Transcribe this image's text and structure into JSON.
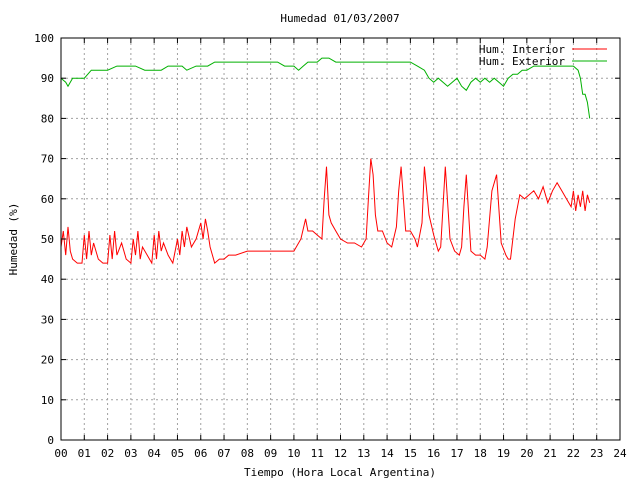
{
  "chart_data": {
    "type": "line",
    "title": "Humedad 01/03/2007",
    "xlabel": "Tiempo (Hora Local Argentina)",
    "ylabel": "Humedad (%)",
    "xlim": [
      0,
      24
    ],
    "ylim": [
      0,
      100
    ],
    "grid": true,
    "legend_position": "top-right",
    "x_ticks": [
      0,
      1,
      2,
      3,
      4,
      5,
      6,
      7,
      8,
      9,
      10,
      11,
      12,
      13,
      14,
      15,
      16,
      17,
      18,
      19,
      20,
      21,
      22,
      23,
      24
    ],
    "x_tick_labels": [
      "00",
      "01",
      "02",
      "03",
      "04",
      "05",
      "06",
      "07",
      "08",
      "09",
      "10",
      "11",
      "12",
      "13",
      "14",
      "15",
      "16",
      "17",
      "18",
      "19",
      "20",
      "21",
      "22",
      "23",
      "24"
    ],
    "y_ticks": [
      0,
      10,
      20,
      30,
      40,
      50,
      60,
      70,
      80,
      90,
      100
    ],
    "y_tick_labels": [
      "0",
      "10",
      "20",
      "30",
      "40",
      "50",
      "60",
      "70",
      "80",
      "90",
      "100"
    ],
    "series": [
      {
        "name": "Hum. Interior",
        "color": "#ff0000",
        "x": [
          0.0,
          0.1,
          0.2,
          0.3,
          0.4,
          0.5,
          0.7,
          0.9,
          1.0,
          1.1,
          1.2,
          1.3,
          1.4,
          1.6,
          1.8,
          2.0,
          2.1,
          2.2,
          2.3,
          2.4,
          2.6,
          2.8,
          3.0,
          3.1,
          3.2,
          3.3,
          3.4,
          3.5,
          3.7,
          3.9,
          4.0,
          4.1,
          4.2,
          4.3,
          4.4,
          4.6,
          4.8,
          5.0,
          5.1,
          5.2,
          5.3,
          5.4,
          5.6,
          5.8,
          6.0,
          6.1,
          6.2,
          6.3,
          6.4,
          6.6,
          6.8,
          7.0,
          7.2,
          7.5,
          8.0,
          8.5,
          9.0,
          9.5,
          10.0,
          10.3,
          10.5,
          10.6,
          10.8,
          11.0,
          11.2,
          11.3,
          11.4,
          11.5,
          11.6,
          11.8,
          12.0,
          12.3,
          12.6,
          12.9,
          13.1,
          13.2,
          13.3,
          13.4,
          13.5,
          13.6,
          13.8,
          14.0,
          14.2,
          14.4,
          14.5,
          14.6,
          14.8,
          15.0,
          15.2,
          15.3,
          15.5,
          15.6,
          15.8,
          16.0,
          16.2,
          16.3,
          16.4,
          16.5,
          16.7,
          16.9,
          17.1,
          17.2,
          17.3,
          17.4,
          17.6,
          17.8,
          18.0,
          18.2,
          18.3,
          18.5,
          18.7,
          18.9,
          19.1,
          19.2,
          19.3,
          19.5,
          19.7,
          19.9,
          20.1,
          20.3,
          20.5,
          20.7,
          20.9,
          21.1,
          21.3,
          21.5,
          21.7,
          21.9,
          22.0,
          22.1,
          22.2,
          22.3,
          22.4,
          22.5,
          22.6,
          22.7
        ],
        "values": [
          48,
          52,
          46,
          53,
          47,
          45,
          44,
          44,
          51,
          45,
          52,
          46,
          49,
          45,
          44,
          44,
          51,
          45,
          52,
          46,
          49,
          45,
          44,
          50,
          46,
          52,
          45,
          48,
          46,
          44,
          51,
          45,
          52,
          47,
          49,
          46,
          44,
          50,
          46,
          52,
          48,
          53,
          48,
          50,
          54,
          50,
          55,
          52,
          48,
          44,
          45,
          45,
          46,
          46,
          47,
          47,
          47,
          47,
          47,
          50,
          55,
          52,
          52,
          51,
          50,
          60,
          68,
          56,
          54,
          52,
          50,
          49,
          49,
          48,
          50,
          60,
          70,
          66,
          56,
          52,
          52,
          49,
          48,
          53,
          62,
          68,
          52,
          52,
          50,
          48,
          54,
          68,
          56,
          51,
          47,
          48,
          58,
          68,
          50,
          47,
          46,
          48,
          58,
          66,
          47,
          46,
          46,
          45,
          48,
          62,
          66,
          49,
          46,
          45,
          45,
          55,
          61,
          60,
          61,
          62,
          60,
          63,
          59,
          62,
          64,
          62,
          60,
          58,
          62,
          57,
          61,
          58,
          62,
          57,
          61,
          59
        ],
        "values_unit": "%"
      },
      {
        "name": "Hum. Exterior",
        "color": "#00b000",
        "x": [
          0.0,
          0.2,
          0.3,
          0.5,
          0.8,
          1.0,
          1.3,
          1.6,
          2.0,
          2.4,
          2.8,
          3.2,
          3.6,
          4.0,
          4.3,
          4.6,
          5.0,
          5.2,
          5.4,
          5.8,
          6.0,
          6.3,
          6.6,
          7.0,
          7.5,
          8.0,
          8.5,
          9.0,
          9.3,
          9.6,
          10.0,
          10.2,
          10.4,
          10.6,
          10.8,
          11.0,
          11.2,
          11.5,
          11.8,
          12.0,
          12.5,
          13.0,
          13.5,
          14.0,
          14.5,
          15.0,
          15.3,
          15.6,
          15.8,
          16.0,
          16.2,
          16.4,
          16.6,
          16.8,
          17.0,
          17.2,
          17.4,
          17.6,
          17.8,
          18.0,
          18.2,
          18.4,
          18.6,
          18.8,
          19.0,
          19.2,
          19.4,
          19.6,
          19.8,
          20.0,
          20.3,
          20.6,
          21.0,
          21.3,
          21.6,
          22.0,
          22.2,
          22.3,
          22.4,
          22.5,
          22.6,
          22.7
        ],
        "values": [
          90,
          89,
          88,
          90,
          90,
          90,
          92,
          92,
          92,
          93,
          93,
          93,
          92,
          92,
          92,
          93,
          93,
          93,
          92,
          93,
          93,
          93,
          94,
          94,
          94,
          94,
          94,
          94,
          94,
          93,
          93,
          92,
          93,
          94,
          94,
          94,
          95,
          95,
          94,
          94,
          94,
          94,
          94,
          94,
          94,
          94,
          93,
          92,
          90,
          89,
          90,
          89,
          88,
          89,
          90,
          88,
          87,
          89,
          90,
          89,
          90,
          89,
          90,
          89,
          88,
          90,
          91,
          91,
          92,
          92,
          93,
          93,
          93,
          93,
          93,
          93,
          92,
          90,
          86,
          86,
          84,
          80
        ],
        "values_unit": "%"
      }
    ]
  }
}
